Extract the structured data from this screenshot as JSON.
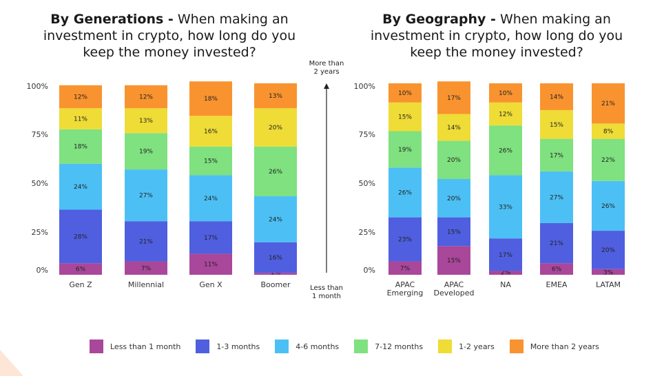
{
  "chart_data": [
    {
      "type": "bar",
      "stacked": true,
      "title_bold": "By Generations -",
      "title_rest": "When making an investment in crypto, how long do you keep the money invested?",
      "categories": [
        "Gen Z",
        "Millennial",
        "Gen X",
        "Boomer"
      ],
      "yticks": [
        "0%",
        "25%",
        "50%",
        "75%",
        "100%"
      ],
      "ylim": [
        0,
        100
      ],
      "series": [
        {
          "name": "Less than 1 month",
          "values": [
            6,
            7,
            11,
            1
          ],
          "labels": [
            "6%",
            "7%",
            "11%",
            "1%"
          ]
        },
        {
          "name": "1-3 months",
          "values": [
            28,
            21,
            17,
            16
          ],
          "labels": [
            "28%",
            "21%",
            "17%",
            "16%"
          ]
        },
        {
          "name": "4-6 months",
          "values": [
            24,
            27,
            24,
            24
          ],
          "labels": [
            "24%",
            "27%",
            "24%",
            "24%"
          ]
        },
        {
          "name": "7-12 months",
          "values": [
            18,
            19,
            15,
            26
          ],
          "labels": [
            "18%",
            "19%",
            "15%",
            "26%"
          ]
        },
        {
          "name": "1-2 years",
          "values": [
            11,
            13,
            16,
            20
          ],
          "labels": [
            "11%",
            "13%",
            "16%",
            "20%"
          ]
        },
        {
          "name": "More than 2 years",
          "values": [
            12,
            12,
            18,
            13
          ],
          "labels": [
            "12%",
            "12%",
            "18%",
            "13%"
          ]
        }
      ]
    },
    {
      "type": "bar",
      "stacked": true,
      "title_bold": "By Geography -",
      "title_rest": "When making an investment in crypto, how long do you keep the money invested?",
      "categories": [
        "APAC Emerging",
        "APAC Developed",
        "NA",
        "EMEA",
        "LATAM"
      ],
      "yticks": [
        "0%",
        "25%",
        "50%",
        "75%",
        "100%"
      ],
      "ylim": [
        0,
        100
      ],
      "series": [
        {
          "name": "Less than 1 month",
          "values": [
            7,
            15,
            2,
            6,
            3
          ],
          "labels": [
            "7%",
            "15%",
            "2%",
            "6%",
            "3%"
          ]
        },
        {
          "name": "1-3 months",
          "values": [
            23,
            15,
            17,
            21,
            20
          ],
          "labels": [
            "23%",
            "15%",
            "17%",
            "21%",
            "20%"
          ]
        },
        {
          "name": "4-6 months",
          "values": [
            26,
            20,
            33,
            27,
            26
          ],
          "labels": [
            "26%",
            "20%",
            "33%",
            "27%",
            "26%"
          ]
        },
        {
          "name": "7-12 months",
          "values": [
            19,
            20,
            26,
            17,
            22
          ],
          "labels": [
            "19%",
            "20%",
            "26%",
            "17%",
            "22%"
          ]
        },
        {
          "name": "1-2 years",
          "values": [
            15,
            14,
            12,
            15,
            8
          ],
          "labels": [
            "15%",
            "14%",
            "12%",
            "15%",
            "8%"
          ]
        },
        {
          "name": "More than 2 years",
          "values": [
            10,
            17,
            10,
            14,
            21
          ],
          "labels": [
            "10%",
            "17%",
            "10%",
            "14%",
            "21%"
          ]
        }
      ]
    }
  ],
  "colors": [
    "#a9479a",
    "#4f5fe0",
    "#4cc0f5",
    "#7fe17f",
    "#efdc36",
    "#f9932f"
  ],
  "arrow": {
    "top_label": "More than 2 years",
    "bottom_label": "Less than 1 month"
  },
  "legend": [
    {
      "label": "Less than 1 month",
      "color": "#a9479a"
    },
    {
      "label": "1-3 months",
      "color": "#4f5fe0"
    },
    {
      "label": "4-6 months",
      "color": "#4cc0f5"
    },
    {
      "label": "7-12 months",
      "color": "#7fe17f"
    },
    {
      "label": "1-2 years",
      "color": "#efdc36"
    },
    {
      "label": "More than 2 years",
      "color": "#f9932f"
    }
  ]
}
